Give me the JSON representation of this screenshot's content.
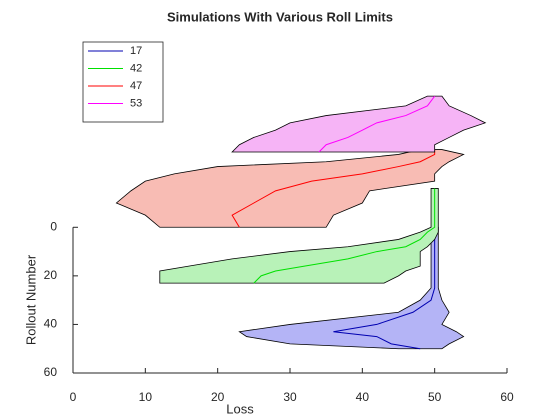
{
  "chart_data": {
    "type": "band",
    "title": "Simulations With Various Roll Limits",
    "x_label": "Loss",
    "y_label": "Rollout Number",
    "xlim": [
      0,
      60
    ],
    "xticks": [
      0,
      10,
      20,
      30,
      40,
      50,
      60
    ],
    "ylim": [
      -80,
      60
    ],
    "yticks": [
      0,
      20,
      40,
      60
    ],
    "y_reversed": true,
    "legend": "upper left",
    "series": [
      {
        "name": "17",
        "color": "#0000b0",
        "fill": "#b4b4f6",
        "rollouts": [
          0,
          10,
          20,
          25,
          30,
          35,
          40,
          43,
          45,
          48,
          50
        ],
        "values": [
          50,
          50,
          50,
          50,
          49.5,
          47,
          42,
          36,
          42,
          44,
          48
        ],
        "lower": [
          49.5,
          49.5,
          49.5,
          49.5,
          48,
          45,
          30,
          23,
          24,
          30,
          45
        ],
        "upper": [
          50.5,
          50.5,
          50.5,
          50.5,
          51,
          52,
          51,
          53,
          54,
          52,
          51
        ]
      },
      {
        "name": "42",
        "color": "#00e000",
        "fill": "#b8f2b8",
        "rollouts": [
          -16,
          0,
          2,
          5,
          8,
          10,
          13,
          16,
          18,
          20,
          23
        ],
        "values": [
          50,
          50,
          49,
          48,
          46,
          42,
          38,
          32,
          28,
          26,
          25
        ],
        "lower": [
          49.5,
          49.5,
          48,
          45,
          38,
          30,
          22,
          16,
          12,
          12,
          12
        ],
        "upper": [
          50.5,
          50.5,
          50.5,
          50,
          49,
          48,
          48,
          48,
          46,
          45,
          43
        ]
      },
      {
        "name": "47",
        "color": "#ff0000",
        "fill": "#f8bcb4",
        "rollouts": [
          -32,
          -30,
          -27,
          -25,
          -22,
          -19,
          -15,
          -10,
          -5,
          0
        ],
        "values": [
          50,
          50,
          48,
          45,
          40,
          33,
          28,
          25,
          22,
          23
        ],
        "lower": [
          48,
          45,
          35,
          20,
          14,
          10,
          8,
          6,
          10,
          12
        ],
        "upper": [
          51,
          54,
          52,
          51,
          50,
          50,
          41,
          40,
          36,
          35
        ]
      },
      {
        "name": "53",
        "color": "#ff00ff",
        "fill": "#f6b4f6",
        "rollouts": [
          -54,
          -50,
          -46,
          -43,
          -40,
          -37,
          -34,
          -31
        ],
        "values": [
          50,
          49,
          46,
          42,
          40,
          38,
          35,
          34
        ],
        "lower": [
          49,
          46,
          35,
          30,
          28,
          25,
          23,
          22
        ],
        "upper": [
          51,
          52,
          55,
          57,
          54,
          52,
          50,
          50
        ]
      }
    ]
  }
}
